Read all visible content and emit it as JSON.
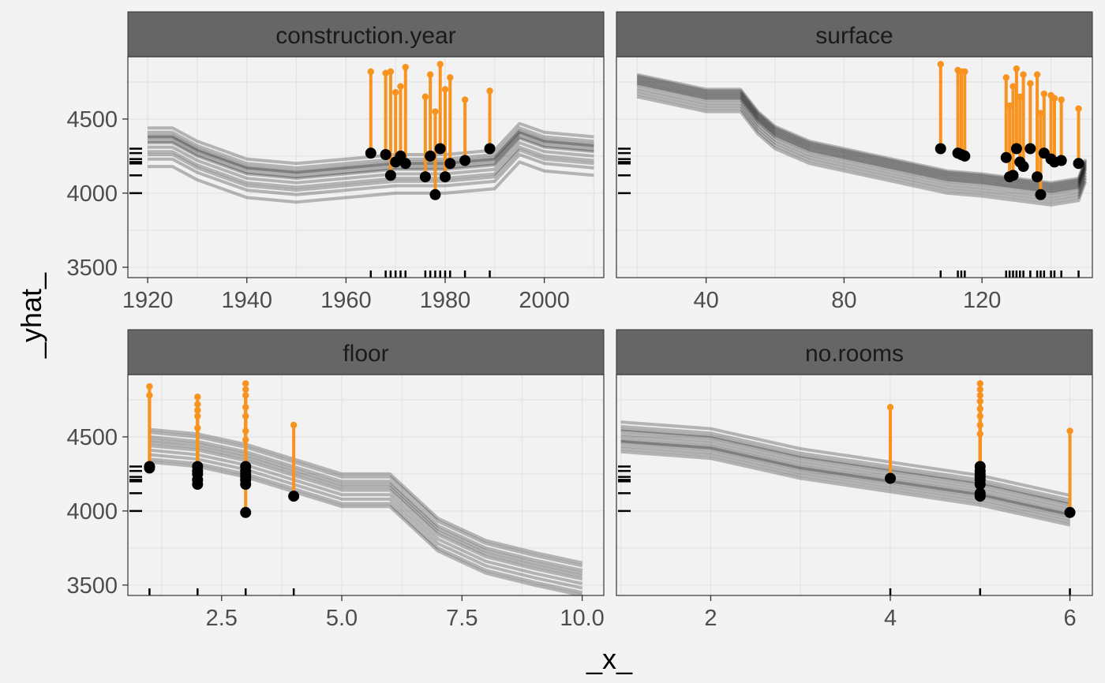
{
  "chart_data": {
    "type": "line",
    "subtype": "ceteris-paribus profiles with residual lollipops and rug",
    "xlabel": "_x_",
    "ylabel": "_yhat_",
    "grid": true,
    "colors": {
      "profile": "#000000",
      "residual": "#f7931e",
      "observation": "#000000",
      "strip": "#666666",
      "panel": "#f2f2f2",
      "gridline": "#e4e4e4"
    },
    "y_rug": [
      4300,
      4270,
      4230,
      4210,
      4200,
      4120,
      4000
    ],
    "panels": [
      {
        "variable": "construction.year",
        "xlim": [
          1916,
          2012
        ],
        "ylim": [
          3430,
          4920
        ],
        "xticks": [
          1920,
          1940,
          1960,
          1980,
          2000
        ],
        "xtick_labels": [
          "1920",
          "1940",
          "1960",
          "1980",
          "2000"
        ],
        "yticks": [
          3500,
          4000,
          4500
        ],
        "ytick_labels": [
          "3500",
          "4000",
          "4500"
        ],
        "grid_x": [
          1920,
          1930,
          1940,
          1950,
          1960,
          1970,
          1980,
          1990,
          2000,
          2010
        ],
        "grid_y": [
          3500,
          3750,
          4000,
          4250,
          4500,
          4750
        ],
        "profile_x": [
          1920,
          1925,
          1930,
          1935,
          1940,
          1950,
          1960,
          1970,
          1980,
          1990,
          1995,
          2000,
          2010
        ],
        "profile_shape": [
          0.3,
          0.3,
          0.15,
          0.05,
          -0.05,
          -0.1,
          -0.05,
          0.0,
          0.0,
          0.05,
          0.35,
          0.25,
          0.2
        ],
        "profile_offsets": [
          4260,
          4230,
          4210,
          4200,
          4190,
          4160,
          4130,
          4080,
          4050,
          4000,
          4100,
          4170
        ],
        "profile_amp": 0.6,
        "profile_alpha": 0.26,
        "obs_x": [
          1965,
          1968,
          1969,
          1970,
          1971,
          1972,
          1976,
          1977,
          1978,
          1979,
          1980,
          1981,
          1984,
          1989
        ],
        "obs_y": [
          4270,
          4260,
          4120,
          4210,
          4250,
          4200,
          4110,
          4250,
          3990,
          4300,
          4110,
          4200,
          4220,
          4300
        ],
        "obs_pred": [
          4820,
          4810,
          4820,
          4680,
          4720,
          4850,
          4650,
          4800,
          4550,
          4870,
          4700,
          4780,
          4630,
          4690
        ],
        "x_rug": [
          1965,
          1968,
          1969,
          1970,
          1971,
          1972,
          1976,
          1977,
          1978,
          1979,
          1980,
          1981,
          1984,
          1989
        ]
      },
      {
        "variable": "surface",
        "xlim": [
          14,
          152
        ],
        "ylim": [
          3430,
          4920
        ],
        "xticks": [
          40,
          80,
          120
        ],
        "xtick_labels": [
          "40",
          "80",
          "120"
        ],
        "yticks": [
          3500,
          4000,
          4500
        ],
        "ytick_labels": [
          "3500",
          "4000",
          "4500"
        ],
        "grid_x": [
          20,
          40,
          60,
          80,
          100,
          120,
          140
        ],
        "grid_y": [
          3500,
          3750,
          4000,
          4250,
          4500,
          4750
        ],
        "profile_x": [
          20,
          30,
          40,
          50,
          55,
          60,
          70,
          80,
          90,
          100,
          110,
          120,
          130,
          140,
          148,
          150
        ],
        "profile_shape": [
          0.55,
          0.5,
          0.45,
          0.45,
          0.3,
          0.2,
          0.1,
          0.05,
          0.0,
          -0.05,
          -0.1,
          -0.12,
          -0.15,
          -0.18,
          -0.15,
          -0.02
        ],
        "profile_offsets": [
          4250,
          4240,
          4230,
          4220,
          4210,
          4200,
          4190,
          4180,
          4160,
          4140,
          4120,
          4100
        ],
        "profile_amp": 1.0,
        "profile_alpha": 0.26,
        "obs_x": [
          108,
          113,
          114,
          115,
          127,
          128,
          129,
          130,
          131,
          132,
          134,
          136,
          137,
          138,
          140,
          141,
          143,
          148
        ],
        "obs_y": [
          4300,
          4270,
          4260,
          4250,
          4240,
          4110,
          4120,
          4300,
          4210,
          4180,
          4300,
          4110,
          3990,
          4270,
          4230,
          4210,
          4220,
          4200
        ],
        "obs_pred": [
          4870,
          4830,
          4820,
          4820,
          4780,
          4590,
          4720,
          4840,
          4650,
          4800,
          4740,
          4800,
          4540,
          4670,
          4660,
          4640,
          4630,
          4570
        ],
        "x_rug": [
          108,
          113,
          114,
          115,
          127,
          128,
          129,
          130,
          131,
          132,
          134,
          136,
          137,
          138,
          140,
          141,
          143,
          148
        ]
      },
      {
        "variable": "floor",
        "xlim": [
          0.55,
          10.45
        ],
        "ylim": [
          3430,
          4920
        ],
        "xticks": [
          2.5,
          5.0,
          7.5,
          10.0
        ],
        "xtick_labels": [
          "2.5",
          "5.0",
          "7.5",
          "10.0"
        ],
        "yticks": [
          3500,
          4000,
          4500
        ],
        "ytick_labels": [
          "3500",
          "4000",
          "4500"
        ],
        "grid_x": [
          1.25,
          2.5,
          3.75,
          5.0,
          6.25,
          7.5,
          8.75,
          10.0
        ],
        "grid_y": [
          3500,
          3750,
          4000,
          4250,
          4500,
          4750
        ],
        "profile_x": [
          1,
          2,
          3,
          4,
          5,
          6,
          7,
          8,
          9,
          10
        ],
        "profile_shape": [
          0.25,
          0.22,
          0.15,
          0.05,
          -0.05,
          -0.05,
          -0.35,
          -0.5,
          -0.58,
          -0.65
        ],
        "profile_offsets": [
          4300,
          4280,
          4250,
          4230,
          4210,
          4190,
          4160,
          4130,
          4100,
          4080
        ],
        "profile_amp": 1.0,
        "profile_alpha": 0.26,
        "obs_x": [
          1,
          1,
          2,
          2,
          2,
          2,
          2,
          3,
          3,
          3,
          3,
          3,
          3,
          3,
          4
        ],
        "obs_y": [
          4300,
          4290,
          4300,
          4270,
          4250,
          4210,
          4180,
          4300,
          4270,
          4250,
          4230,
          4210,
          4180,
          3990,
          4100
        ],
        "obs_pred": [
          4840,
          4780,
          4770,
          4720,
          4680,
          4640,
          4560,
          4860,
          4820,
          4780,
          4700,
          4640,
          4540,
          4480,
          4580
        ],
        "x_rug": [
          1,
          2,
          3,
          4
        ]
      },
      {
        "variable": "no.rooms",
        "xlim": [
          0.95,
          6.25
        ],
        "ylim": [
          3430,
          4920
        ],
        "xticks": [
          2,
          4,
          6
        ],
        "xtick_labels": [
          "2",
          "4",
          "6"
        ],
        "yticks": [
          3500,
          4000,
          4500
        ],
        "ytick_labels": [
          "3500",
          "4000",
          "4500"
        ],
        "grid_x": [
          1,
          2,
          3,
          4,
          5,
          6
        ],
        "grid_y": [
          3500,
          3750,
          4000,
          4250,
          4500,
          4750
        ],
        "profile_x": [
          1,
          2,
          3,
          4,
          5,
          6
        ],
        "profile_shape": [
          0.3,
          0.25,
          0.1,
          0.0,
          -0.1,
          -0.25
        ],
        "profile_offsets": [
          4330,
          4300,
          4280,
          4270,
          4250,
          4230,
          4210,
          4200,
          4190,
          4170,
          4150,
          4130
        ],
        "profile_amp": 0.9,
        "profile_alpha": 0.26,
        "obs_x": [
          4,
          5,
          5,
          5,
          5,
          5,
          5,
          5,
          5,
          6
        ],
        "obs_y": [
          4220,
          4300,
          4270,
          4250,
          4230,
          4210,
          4180,
          4120,
          4100,
          3990
        ],
        "obs_pred": [
          4700,
          4860,
          4820,
          4780,
          4740,
          4690,
          4640,
          4580,
          4520,
          4540
        ],
        "x_rug": [
          4,
          5,
          6
        ]
      }
    ]
  }
}
